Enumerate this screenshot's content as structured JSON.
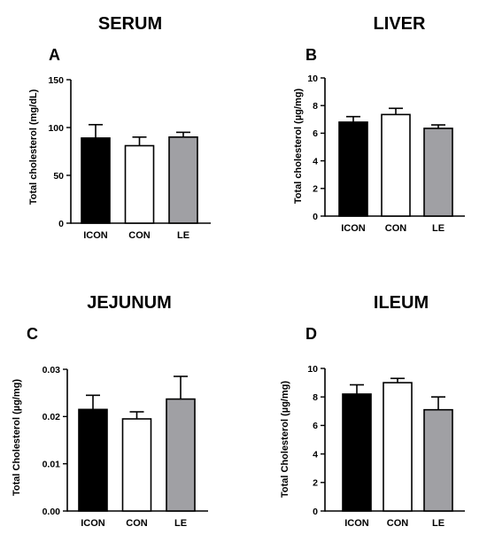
{
  "chart_data": [
    {
      "type": "bar",
      "panel": "A",
      "title": "SERUM",
      "ylabel": "Total cholesterol (mg/dL)",
      "categories": [
        "ICON",
        "CON",
        "LE"
      ],
      "values": [
        89,
        81,
        90
      ],
      "errors": [
        14,
        9,
        5
      ],
      "ylim": [
        0,
        150
      ],
      "yticks": [
        0,
        50,
        100,
        150
      ],
      "ytick_labels": [
        "0",
        "50",
        "100",
        "150"
      ],
      "bar_colors": [
        "#000000",
        "#ffffff",
        "#a0a0a4"
      ]
    },
    {
      "type": "bar",
      "panel": "B",
      "title": "LIVER",
      "ylabel": "Total cholesterol (µg/mg)",
      "categories": [
        "ICON",
        "CON",
        "LE"
      ],
      "values": [
        6.8,
        7.35,
        6.35
      ],
      "errors": [
        0.4,
        0.45,
        0.25
      ],
      "ylim": [
        0,
        10
      ],
      "yticks": [
        0,
        2,
        4,
        6,
        8,
        10
      ],
      "ytick_labels": [
        "0",
        "2",
        "4",
        "6",
        "8",
        "10"
      ],
      "bar_colors": [
        "#000000",
        "#ffffff",
        "#a0a0a4"
      ]
    },
    {
      "type": "bar",
      "panel": "C",
      "title": "JEJUNUM",
      "ylabel": "Total Cholesterol (µg/mg)",
      "categories": [
        "ICON",
        "CON",
        "LE"
      ],
      "values": [
        0.0215,
        0.0195,
        0.0237
      ],
      "errors": [
        0.003,
        0.0015,
        0.0048
      ],
      "ylim": [
        0,
        0.03
      ],
      "yticks": [
        0,
        0.01,
        0.02,
        0.03
      ],
      "ytick_labels": [
        "0.00",
        "0.01",
        "0.02",
        "0.03"
      ],
      "bar_colors": [
        "#000000",
        "#ffffff",
        "#a0a0a4"
      ]
    },
    {
      "type": "bar",
      "panel": "D",
      "title": "ILEUM",
      "ylabel": "Total Cholesterol (µg/mg)",
      "categories": [
        "ICON",
        "CON",
        "LE"
      ],
      "values": [
        8.2,
        9.0,
        7.1
      ],
      "errors": [
        0.65,
        0.3,
        0.9
      ],
      "ylim": [
        0,
        10
      ],
      "yticks": [
        0,
        2,
        4,
        6,
        8,
        10
      ],
      "ytick_labels": [
        "0",
        "2",
        "4",
        "6",
        "8",
        "10"
      ],
      "bar_colors": [
        "#000000",
        "#ffffff",
        "#a0a0a4"
      ]
    }
  ]
}
